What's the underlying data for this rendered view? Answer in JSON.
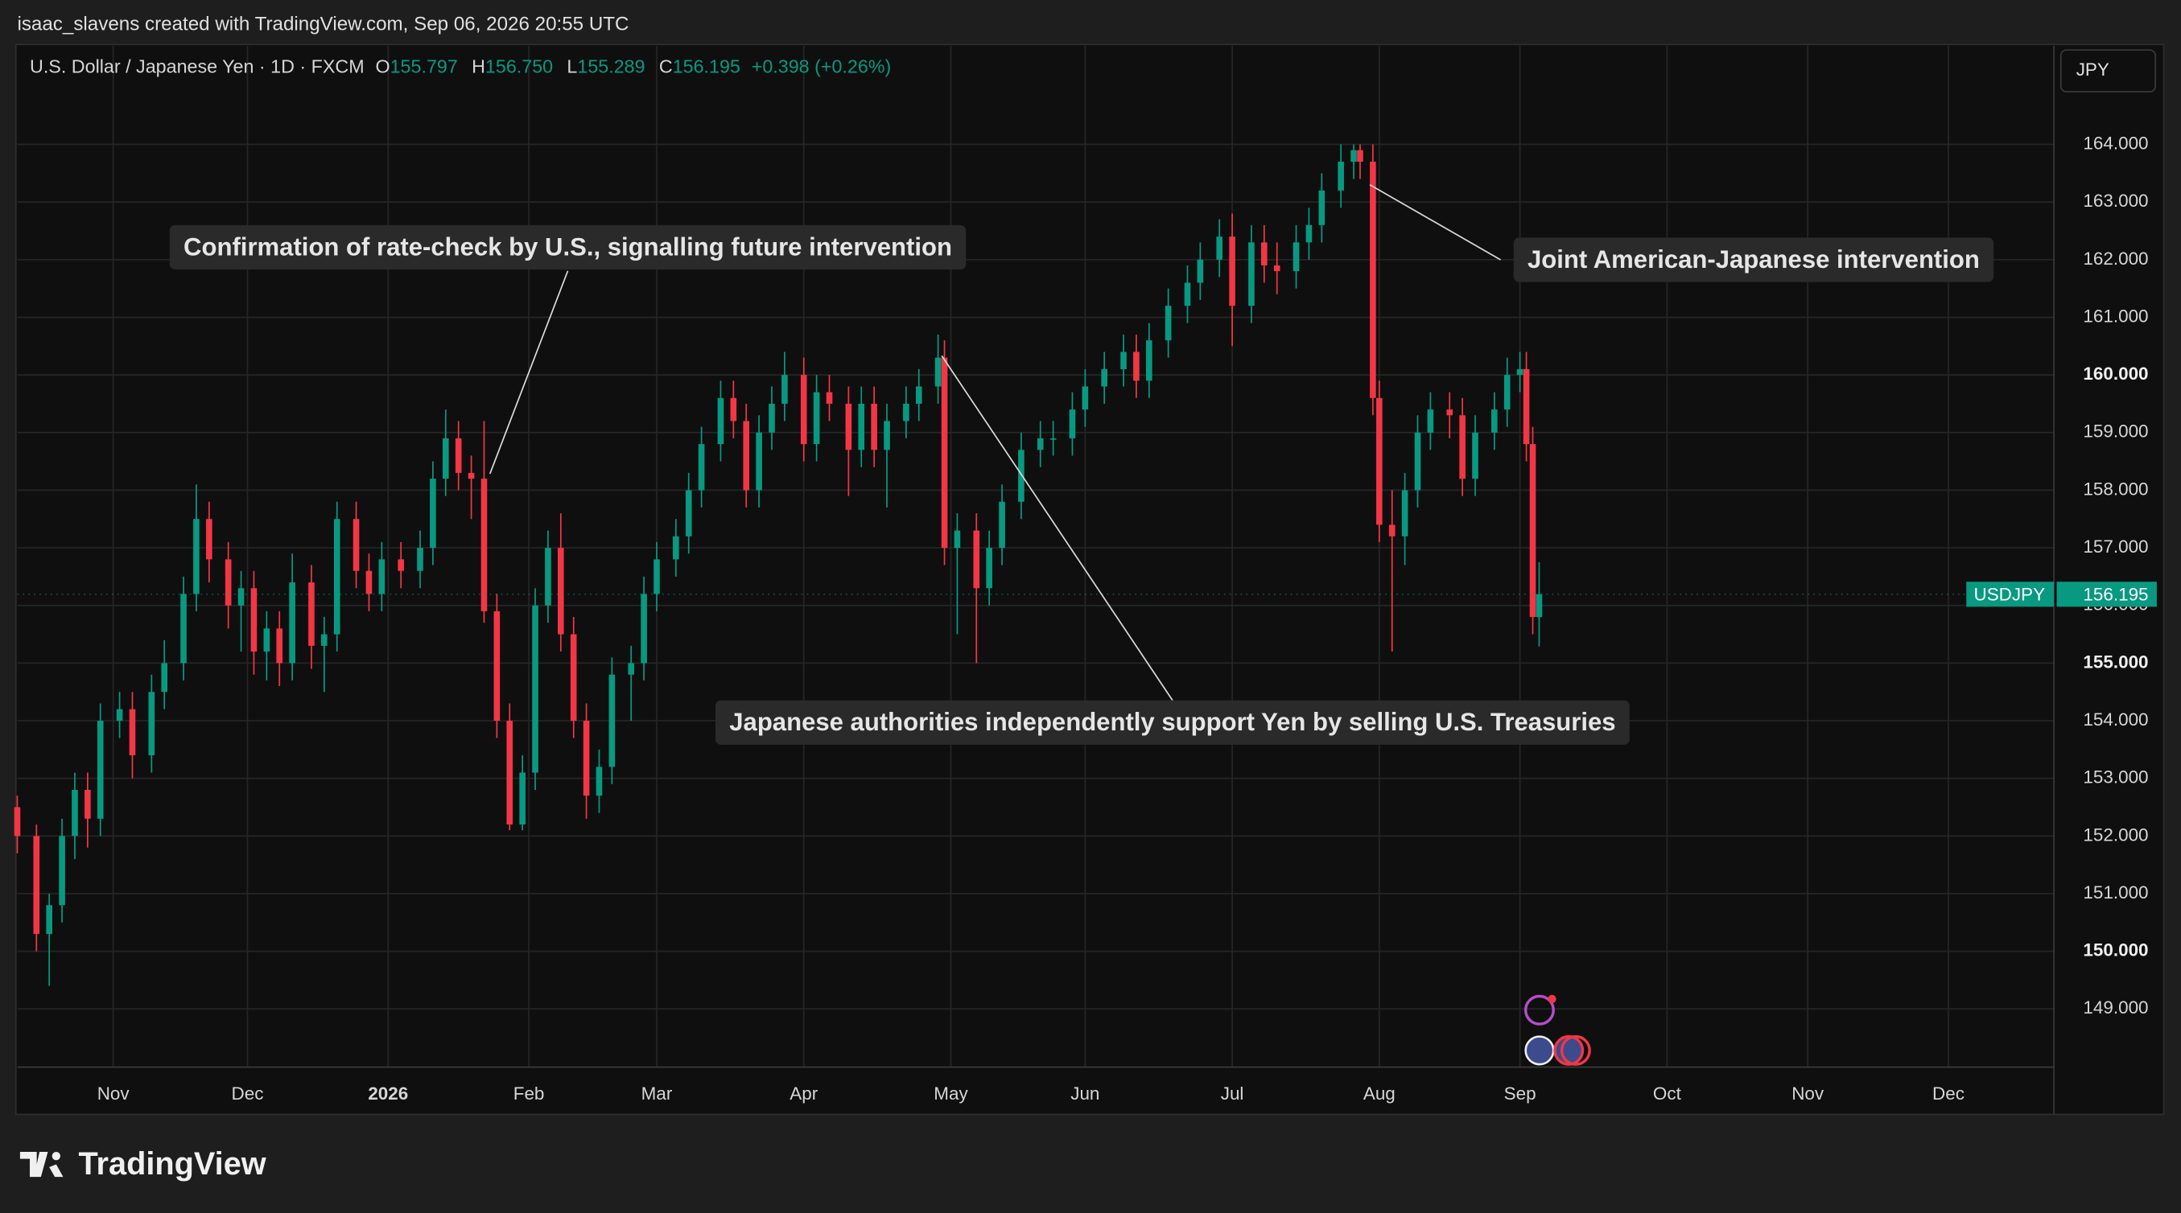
{
  "header": "isaac_slavens created with TradingView.com, Sep 06, 2026 20:55 UTC",
  "brand": "TradingView",
  "currency_button": "JPY",
  "chart_data": {
    "type": "candlestick",
    "title": "U.S. Dollar / Japanese Yen · 1D · FXCM",
    "legend": [
      {
        "key": "O",
        "value": "155.797"
      },
      {
        "key": "H",
        "value": "156.750"
      },
      {
        "key": "L",
        "value": "155.289"
      },
      {
        "key": "C",
        "value": "156.195"
      }
    ],
    "change": "+0.398 (+0.26%)",
    "symbol": "USDJPY",
    "up_color": "#089981",
    "down_color": "#f23645",
    "grid": true,
    "xlim": [
      0,
      318.5
    ],
    "ylim": [
      147.99,
      165.71
    ],
    "xticks": [
      {
        "value": 15,
        "label": "Nov"
      },
      {
        "value": 36,
        "label": "Dec"
      },
      {
        "value": 58,
        "label": "2026"
      },
      {
        "value": 80,
        "label": "Feb"
      },
      {
        "value": 100,
        "label": "Mar"
      },
      {
        "value": 123,
        "label": "Apr"
      },
      {
        "value": 146,
        "label": "May"
      },
      {
        "value": 167,
        "label": "Jun"
      },
      {
        "value": 190,
        "label": "Jul"
      },
      {
        "value": 213,
        "label": "Aug"
      },
      {
        "value": 235,
        "label": "Sep"
      },
      {
        "value": 258,
        "label": "Oct"
      },
      {
        "value": 280,
        "label": "Nov"
      },
      {
        "value": 302,
        "label": "Dec"
      }
    ],
    "yticks": [
      {
        "value": 149,
        "label": "149.000"
      },
      {
        "value": 150,
        "label": "150.000"
      },
      {
        "value": 151,
        "label": "151.000"
      },
      {
        "value": 152,
        "label": "152.000"
      },
      {
        "value": 153,
        "label": "153.000"
      },
      {
        "value": 154,
        "label": "154.000"
      },
      {
        "value": 155,
        "label": "155.000"
      },
      {
        "value": 156,
        "label": "156.000"
      },
      {
        "value": 157,
        "label": "157.000"
      },
      {
        "value": 158,
        "label": "158.000"
      },
      {
        "value": 159,
        "label": "159.000"
      },
      {
        "value": 160,
        "label": "160.000"
      },
      {
        "value": 161,
        "label": "161.000"
      },
      {
        "value": 162,
        "label": "162.000"
      },
      {
        "value": 163,
        "label": "163.000"
      },
      {
        "value": 164,
        "label": "164.000"
      }
    ],
    "annotations": [
      {
        "text": "Confirmation of rate-check by U.S., signalling future intervention"
      },
      {
        "text": "Japanese authorities independently support Yen by selling U.S. Treasuries"
      },
      {
        "text": "Joint American-Japanese intervention"
      }
    ],
    "x": [
      0,
      3,
      5,
      7,
      9,
      11,
      13,
      16,
      18,
      21,
      23,
      26,
      28,
      30,
      33,
      35,
      37,
      39,
      41,
      43,
      46,
      48,
      50,
      53,
      55,
      57,
      60,
      63,
      65,
      67,
      69,
      71,
      73,
      75,
      77,
      79,
      81,
      83,
      85,
      87,
      89,
      91,
      93,
      96,
      98,
      100,
      103,
      105,
      107,
      110,
      112,
      114,
      116,
      118,
      120,
      123,
      125,
      127,
      130,
      132,
      134,
      136,
      139,
      141,
      144,
      145,
      147,
      150,
      152,
      154,
      157,
      160,
      162,
      165,
      167,
      170,
      173,
      175,
      177,
      180,
      183,
      185,
      188,
      190,
      193,
      195,
      197,
      200,
      202,
      204,
      207,
      209,
      210,
      212,
      213,
      215,
      217,
      219,
      221,
      224,
      226,
      228,
      231,
      233,
      235,
      236,
      237,
      238
    ],
    "ohlc": [
      [
        152.5,
        152.7,
        151.7,
        152.0
      ],
      [
        152.0,
        152.2,
        150.0,
        150.3
      ],
      [
        150.3,
        151.0,
        149.4,
        150.8
      ],
      [
        150.8,
        152.3,
        150.5,
        152.0
      ],
      [
        152.0,
        153.1,
        151.6,
        152.8
      ],
      [
        152.8,
        153.1,
        151.8,
        152.3
      ],
      [
        152.3,
        154.3,
        152.0,
        154.0
      ],
      [
        154.0,
        154.5,
        153.7,
        154.2
      ],
      [
        154.2,
        154.5,
        153.0,
        153.4
      ],
      [
        153.4,
        154.8,
        153.1,
        154.5
      ],
      [
        154.5,
        155.4,
        154.2,
        155.0
      ],
      [
        155.0,
        156.5,
        154.7,
        156.2
      ],
      [
        156.2,
        158.1,
        155.9,
        157.5
      ],
      [
        157.5,
        157.8,
        156.4,
        156.8
      ],
      [
        156.8,
        157.1,
        155.6,
        156.0
      ],
      [
        156.0,
        156.6,
        155.2,
        156.3
      ],
      [
        156.3,
        156.6,
        154.8,
        155.2
      ],
      [
        155.2,
        155.9,
        154.7,
        155.6
      ],
      [
        155.6,
        155.9,
        154.6,
        155.0
      ],
      [
        155.0,
        156.9,
        154.7,
        156.4
      ],
      [
        156.4,
        156.7,
        154.9,
        155.3
      ],
      [
        155.3,
        155.8,
        154.5,
        155.5
      ],
      [
        155.5,
        157.8,
        155.2,
        157.5
      ],
      [
        157.5,
        157.8,
        156.3,
        156.6
      ],
      [
        156.6,
        156.9,
        155.9,
        156.2
      ],
      [
        156.2,
        157.1,
        155.9,
        156.8
      ],
      [
        156.8,
        157.1,
        156.3,
        156.6
      ],
      [
        156.6,
        157.3,
        156.3,
        157.0
      ],
      [
        157.0,
        158.5,
        156.7,
        158.2
      ],
      [
        158.2,
        159.4,
        157.9,
        158.9
      ],
      [
        158.9,
        159.2,
        158.0,
        158.3
      ],
      [
        158.3,
        158.6,
        157.5,
        158.2
      ],
      [
        158.2,
        159.2,
        155.7,
        155.9
      ],
      [
        155.9,
        156.2,
        153.7,
        154.0
      ],
      [
        154.0,
        154.3,
        152.1,
        152.2
      ],
      [
        152.2,
        153.4,
        152.1,
        153.1
      ],
      [
        153.1,
        156.3,
        152.8,
        156.0
      ],
      [
        156.0,
        157.3,
        155.7,
        157.0
      ],
      [
        157.0,
        157.6,
        155.2,
        155.5
      ],
      [
        155.5,
        155.8,
        153.7,
        154.0
      ],
      [
        154.0,
        154.3,
        152.3,
        152.7
      ],
      [
        152.7,
        153.5,
        152.4,
        153.2
      ],
      [
        153.2,
        155.1,
        152.9,
        154.8
      ],
      [
        154.8,
        155.3,
        154.0,
        155.0
      ],
      [
        155.0,
        156.5,
        154.7,
        156.2
      ],
      [
        156.2,
        157.1,
        155.9,
        156.8
      ],
      [
        156.8,
        157.5,
        156.5,
        157.2
      ],
      [
        157.2,
        158.3,
        156.9,
        158.0
      ],
      [
        158.0,
        159.1,
        157.7,
        158.8
      ],
      [
        158.8,
        159.9,
        158.5,
        159.6
      ],
      [
        159.6,
        159.9,
        158.9,
        159.2
      ],
      [
        159.2,
        159.5,
        157.7,
        158.0
      ],
      [
        158.0,
        159.3,
        157.7,
        159.0
      ],
      [
        159.0,
        159.8,
        158.7,
        159.5
      ],
      [
        159.5,
        160.4,
        159.2,
        160.0
      ],
      [
        160.0,
        160.3,
        158.5,
        158.8
      ],
      [
        158.8,
        160.0,
        158.5,
        159.7
      ],
      [
        159.7,
        160.0,
        159.2,
        159.5
      ],
      [
        159.5,
        159.8,
        157.9,
        158.7
      ],
      [
        158.7,
        159.8,
        158.4,
        159.5
      ],
      [
        159.5,
        159.8,
        158.4,
        158.7
      ],
      [
        158.7,
        159.5,
        157.7,
        159.2
      ],
      [
        159.2,
        159.8,
        158.9,
        159.5
      ],
      [
        159.5,
        160.1,
        159.2,
        159.8
      ],
      [
        159.8,
        160.7,
        159.5,
        160.3
      ],
      [
        160.3,
        160.6,
        156.7,
        157.0
      ],
      [
        157.0,
        157.6,
        155.5,
        157.3
      ],
      [
        157.3,
        157.6,
        155.0,
        156.3
      ],
      [
        156.3,
        157.3,
        156.0,
        157.0
      ],
      [
        157.0,
        158.1,
        156.7,
        157.8
      ],
      [
        157.8,
        159.0,
        157.5,
        158.7
      ],
      [
        158.7,
        159.2,
        158.4,
        158.9
      ],
      [
        158.9,
        159.2,
        158.6,
        158.9
      ],
      [
        158.9,
        159.7,
        158.6,
        159.4
      ],
      [
        159.4,
        160.1,
        159.1,
        159.8
      ],
      [
        159.8,
        160.4,
        159.5,
        160.1
      ],
      [
        160.1,
        160.7,
        159.8,
        160.4
      ],
      [
        160.4,
        160.7,
        159.6,
        159.9
      ],
      [
        159.9,
        160.9,
        159.6,
        160.6
      ],
      [
        160.6,
        161.5,
        160.3,
        161.2
      ],
      [
        161.2,
        161.9,
        160.9,
        161.6
      ],
      [
        161.6,
        162.3,
        161.3,
        162.0
      ],
      [
        162.0,
        162.7,
        161.7,
        162.4
      ],
      [
        162.4,
        162.8,
        160.5,
        161.2
      ],
      [
        161.2,
        162.6,
        160.9,
        162.3
      ],
      [
        162.3,
        162.6,
        161.6,
        161.9
      ],
      [
        161.9,
        162.3,
        161.4,
        161.8
      ],
      [
        161.8,
        162.6,
        161.5,
        162.3
      ],
      [
        162.3,
        162.9,
        162.0,
        162.6
      ],
      [
        162.6,
        163.5,
        162.3,
        163.2
      ],
      [
        163.2,
        164.0,
        162.9,
        163.7
      ],
      [
        163.7,
        164.0,
        163.4,
        163.9
      ],
      [
        163.9,
        164.0,
        163.4,
        163.7
      ],
      [
        163.7,
        164.0,
        159.3,
        159.6
      ],
      [
        159.6,
        159.9,
        157.1,
        157.4
      ],
      [
        157.4,
        158.0,
        155.2,
        157.2
      ],
      [
        157.2,
        158.3,
        156.7,
        158.0
      ],
      [
        158.0,
        159.3,
        157.7,
        159.0
      ],
      [
        159.0,
        159.7,
        158.7,
        159.4
      ],
      [
        159.4,
        159.7,
        158.9,
        159.3
      ],
      [
        159.3,
        159.6,
        157.9,
        158.2
      ],
      [
        158.2,
        159.3,
        157.9,
        159.0
      ],
      [
        159.0,
        159.7,
        158.7,
        159.4
      ],
      [
        159.4,
        160.3,
        159.1,
        160.0
      ],
      [
        160.0,
        160.4,
        159.7,
        160.1
      ],
      [
        160.1,
        160.4,
        158.5,
        158.8
      ],
      [
        158.8,
        159.1,
        155.5,
        155.8
      ],
      [
        155.797,
        156.75,
        155.289,
        156.195
      ]
    ]
  }
}
